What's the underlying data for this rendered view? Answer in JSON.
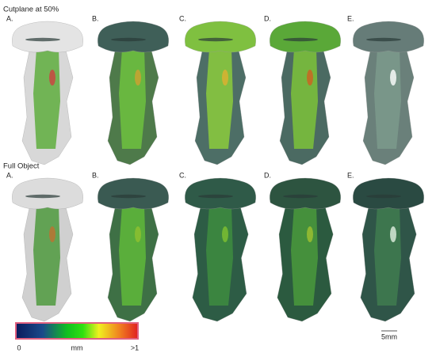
{
  "sections": [
    {
      "title": "Cutplane at 50%",
      "panels": [
        "A.",
        "B.",
        "C.",
        "D.",
        "E."
      ]
    },
    {
      "title": "Full Object",
      "panels": [
        "A.",
        "B.",
        "C.",
        "D.",
        "E."
      ]
    }
  ],
  "colorbar": {
    "min_label": "0",
    "unit": "mm",
    "max_label": ">1"
  },
  "scale_bar": "5mm"
}
